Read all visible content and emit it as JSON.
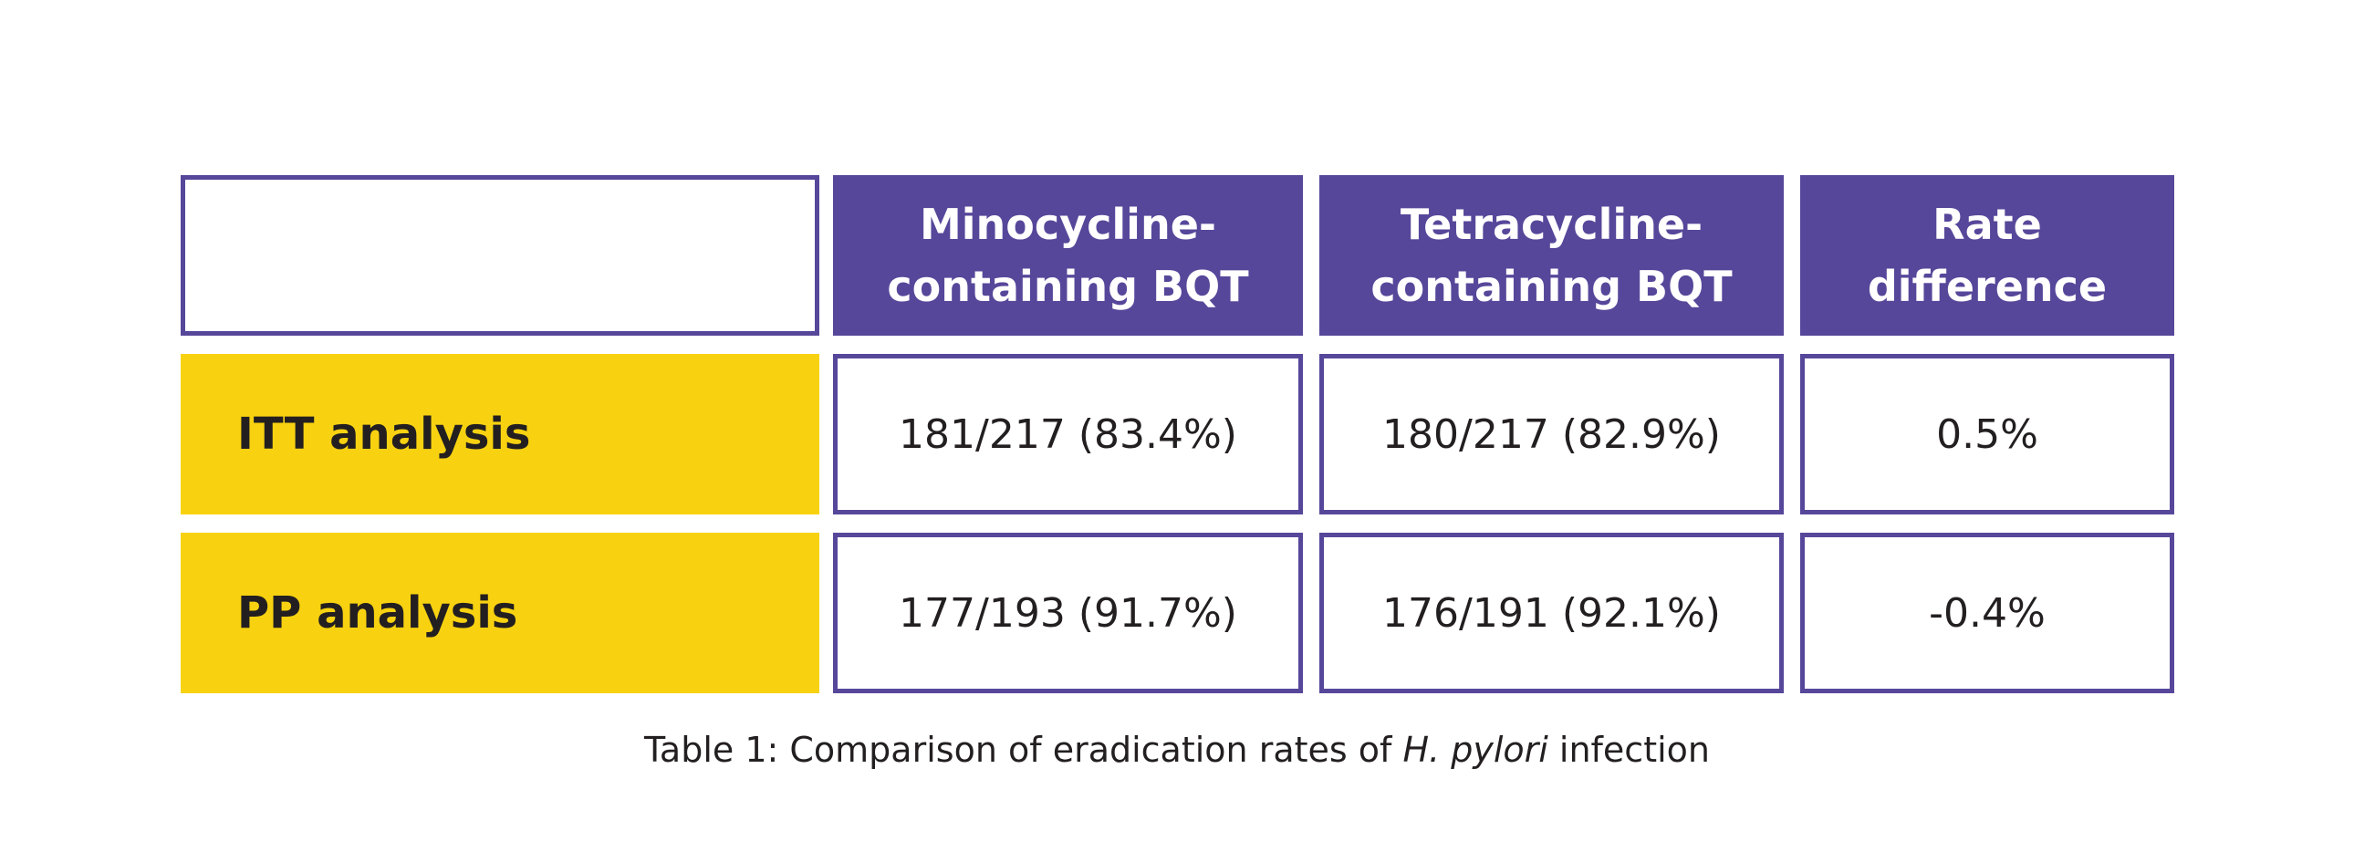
{
  "table": {
    "headers": [
      "",
      [
        "Minocycline-",
        "containing BQT"
      ],
      [
        "Tetracycline-",
        "containing BQT"
      ],
      [
        "Rate",
        "difference"
      ]
    ],
    "rows": [
      {
        "label": "ITT analysis",
        "values": [
          "181/217 (83.4%)",
          "180/217 (82.9%)",
          "0.5%"
        ]
      },
      {
        "label": "PP analysis",
        "values": [
          "177/193 (91.7%)",
          "176/191 (92.1%)",
          "-0.4%"
        ]
      }
    ]
  },
  "caption": {
    "prefix": "Table 1: Comparison of eradication rates of ",
    "italic": "H. pylori",
    "suffix": " infection"
  },
  "colors": {
    "header_purple": "#57479a",
    "label_yellow": "#f8d210",
    "text_dark": "#231f20"
  }
}
